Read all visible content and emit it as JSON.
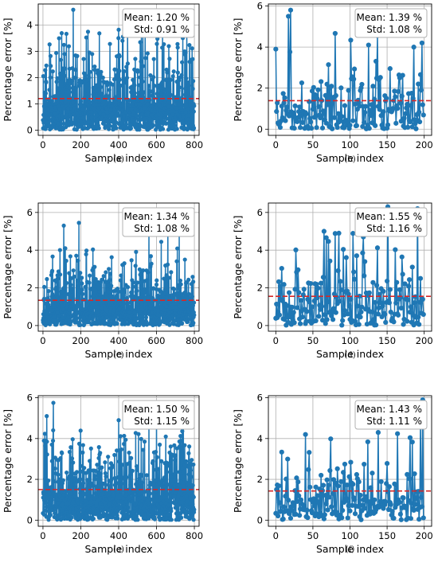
{
  "chart_data": [
    {
      "type": "line",
      "panel_label": "(a)",
      "xlabel": "Sample index",
      "ylabel": "Percentage error [%]",
      "xlim": [
        -25,
        825
      ],
      "ylim": [
        -0.2,
        4.8
      ],
      "xticks": [
        0,
        200,
        400,
        600,
        800
      ],
      "yticks": [
        0,
        1,
        2,
        3,
        4
      ],
      "grid": true,
      "mean_line": {
        "value": 1.2,
        "color": "#d62728",
        "style": "dashed"
      },
      "stats": {
        "mean": "Mean: 1.20 %",
        "std": "Std: 0.91 %"
      },
      "legend_position": "top-right",
      "series": [
        {
          "n": 800,
          "seed": 11,
          "mean": 1.2,
          "std": 0.91,
          "max": 4.58,
          "spikes": [
            [
              160,
              4.58
            ],
            [
              400,
              3.82
            ],
            [
              540,
              3.76
            ],
            [
              760,
              3.7
            ]
          ],
          "color": "#1f77b4"
        }
      ]
    },
    {
      "type": "line",
      "panel_label": "(b)",
      "xlabel": "Sample index",
      "ylabel": "Percentage error [%]",
      "xlim": [
        -10,
        210
      ],
      "ylim": [
        -0.3,
        6.1
      ],
      "xticks": [
        0,
        50,
        100,
        150,
        200
      ],
      "yticks": [
        0,
        2,
        4,
        6
      ],
      "grid": true,
      "mean_line": {
        "value": 1.39,
        "color": "#d62728",
        "style": "dashed"
      },
      "stats": {
        "mean": "Mean: 1.39 %",
        "std": "Std: 1.08 %"
      },
      "legend_position": "top-right",
      "series": [
        {
          "n": 200,
          "seed": 23,
          "mean": 1.39,
          "std": 1.08,
          "max": 5.8,
          "spikes": [
            [
              17,
              5.5
            ],
            [
              20,
              5.8
            ],
            [
              0,
              3.9
            ],
            [
              137,
              4.55
            ],
            [
              197,
              4.2
            ],
            [
              125,
              4.1
            ]
          ],
          "color": "#1f77b4"
        }
      ]
    },
    {
      "type": "line",
      "panel_label": "(c)",
      "xlabel": "Sample index",
      "ylabel": "Percentage error [%]",
      "xlim": [
        -25,
        825
      ],
      "ylim": [
        -0.3,
        6.5
      ],
      "xticks": [
        0,
        200,
        400,
        600,
        800
      ],
      "yticks": [
        0,
        2,
        4,
        6
      ],
      "grid": true,
      "mean_line": {
        "value": 1.34,
        "color": "#d62728",
        "style": "dashed"
      },
      "stats": {
        "mean": "Mean: 1.34 %",
        "std": "Std: 1.08 %"
      },
      "legend_position": "top-right",
      "series": [
        {
          "n": 800,
          "seed": 37,
          "mean": 1.34,
          "std": 1.08,
          "max": 5.5,
          "spikes": [
            [
              110,
              5.3
            ],
            [
              190,
              5.45
            ],
            [
              560,
              5.3
            ],
            [
              660,
              5.1
            ],
            [
              720,
              4.9
            ]
          ],
          "color": "#1f77b4"
        }
      ]
    },
    {
      "type": "line",
      "panel_label": "(d)",
      "xlabel": "Sample index",
      "ylabel": "Percentage error [%]",
      "xlim": [
        -10,
        210
      ],
      "ylim": [
        -0.3,
        6.5
      ],
      "xticks": [
        0,
        50,
        100,
        150,
        200
      ],
      "yticks": [
        0,
        2,
        4,
        6
      ],
      "grid": true,
      "mean_line": {
        "value": 1.55,
        "color": "#d62728",
        "style": "dashed"
      },
      "stats": {
        "mean": "Mean: 1.55 %",
        "std": "Std: 1.16 %"
      },
      "legend_position": "top-right",
      "series": [
        {
          "n": 200,
          "seed": 53,
          "mean": 1.55,
          "std": 1.16,
          "max": 6.3,
          "spikes": [
            [
              151,
              6.3
            ],
            [
              191,
              6.2
            ],
            [
              65,
              5.0
            ],
            [
              85,
              4.9
            ],
            [
              118,
              4.7
            ]
          ],
          "color": "#1f77b4"
        }
      ]
    },
    {
      "type": "line",
      "panel_label": "(e)",
      "xlabel": "Sample index",
      "ylabel": "Percentage error [%]",
      "xlim": [
        -25,
        825
      ],
      "ylim": [
        -0.3,
        6.1
      ],
      "xticks": [
        0,
        200,
        400,
        600,
        800
      ],
      "yticks": [
        0,
        2,
        4,
        6
      ],
      "grid": true,
      "mean_line": {
        "value": 1.5,
        "color": "#d62728",
        "style": "dashed"
      },
      "stats": {
        "mean": "Mean: 1.50 %",
        "std": "Std: 1.15 %"
      },
      "legend_position": "top-right",
      "series": [
        {
          "n": 800,
          "seed": 71,
          "mean": 1.5,
          "std": 1.15,
          "max": 5.8,
          "spikes": [
            [
              55,
              5.75
            ],
            [
              20,
              5.1
            ],
            [
              400,
              4.9
            ],
            [
              560,
              5.6
            ],
            [
              600,
              5.5
            ]
          ],
          "color": "#1f77b4"
        }
      ]
    },
    {
      "type": "line",
      "panel_label": "(f)",
      "xlabel": "Sample index",
      "ylabel": "Percentage error [%]",
      "xlim": [
        -10,
        210
      ],
      "ylim": [
        -0.3,
        6.1
      ],
      "xticks": [
        0,
        50,
        100,
        150,
        200
      ],
      "yticks": [
        0,
        2,
        4,
        6
      ],
      "grid": true,
      "mean_line": {
        "value": 1.43,
        "color": "#d62728",
        "style": "dashed"
      },
      "stats": {
        "mean": "Mean: 1.43 %",
        "std": "Std: 1.11 %"
      },
      "legend_position": "top-right",
      "series": [
        {
          "n": 200,
          "seed": 89,
          "mean": 1.43,
          "std": 1.11,
          "max": 5.9,
          "spikes": [
            [
              198,
              5.9
            ],
            [
              40,
              4.2
            ],
            [
              138,
              4.3
            ],
            [
              195,
              4.9
            ]
          ],
          "color": "#1f77b4"
        }
      ]
    }
  ]
}
